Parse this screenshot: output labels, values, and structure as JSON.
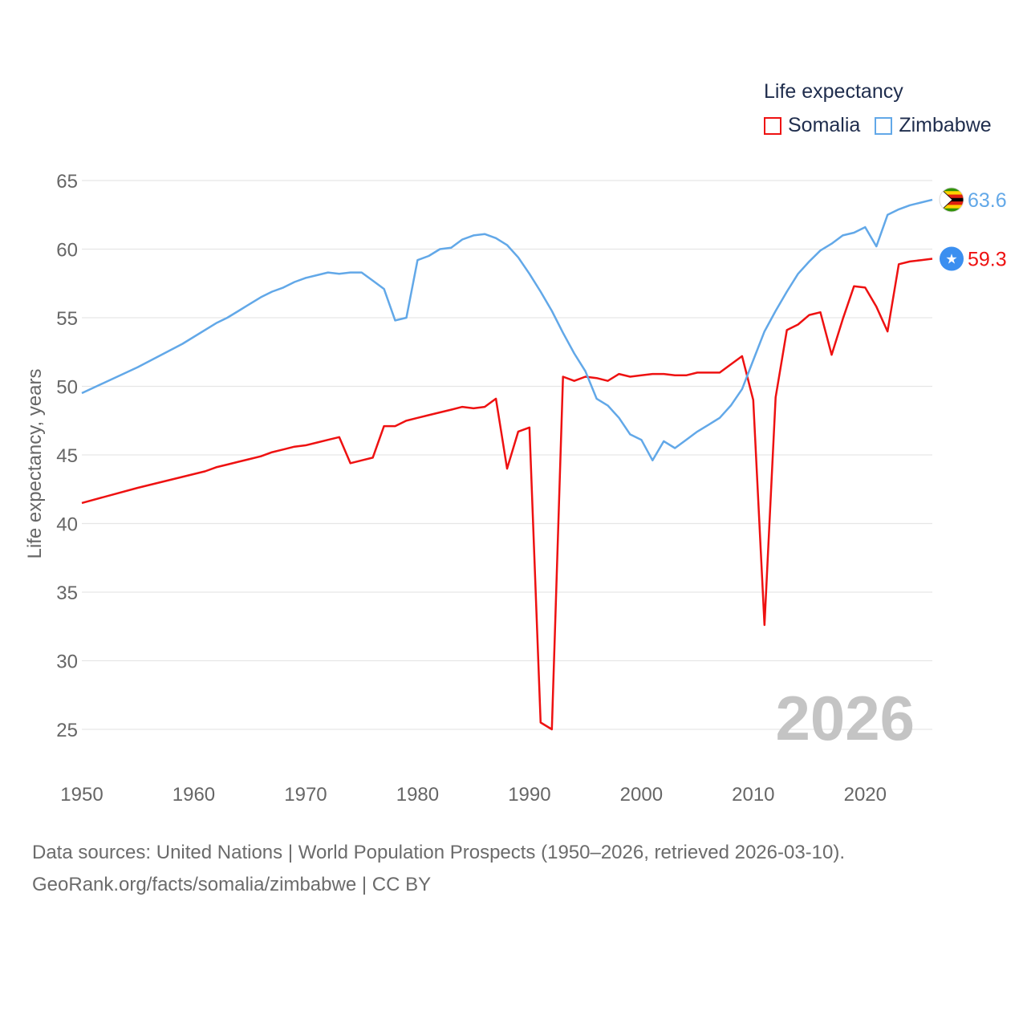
{
  "legend": {
    "title": "Life expectancy",
    "items": [
      {
        "name": "Somalia",
        "color": "#ee1111"
      },
      {
        "name": "Zimbabwe",
        "color": "#62a8e8"
      }
    ]
  },
  "year_watermark": "2026",
  "footer": {
    "line1": "Data sources: United Nations | World Population Prospects (1950–2026, retrieved 2026-03-10).",
    "line2": "GeoRank.org/facts/somalia/zimbabwe | CC BY"
  },
  "chart_data": {
    "type": "line",
    "title": "Life expectancy",
    "xlabel": "",
    "ylabel": "Life expectancy, years",
    "xlim": [
      1950,
      2026
    ],
    "ylim": [
      22,
      65
    ],
    "x_ticks": [
      1950,
      1960,
      1970,
      1980,
      1990,
      2000,
      2010,
      2020
    ],
    "y_ticks": [
      25,
      30,
      35,
      40,
      45,
      50,
      55,
      60,
      65
    ],
    "grid": "horizontal",
    "legend_position": "top-right",
    "series": [
      {
        "name": "Somalia",
        "color": "#ee1111",
        "end_label": "59.3",
        "end_icon": "somalia-flag-icon",
        "points": [
          [
            1950,
            41.5
          ],
          [
            1955,
            42.6
          ],
          [
            1960,
            43.6
          ],
          [
            1961,
            43.8
          ],
          [
            1962,
            44.1
          ],
          [
            1963,
            44.3
          ],
          [
            1964,
            44.5
          ],
          [
            1965,
            44.7
          ],
          [
            1966,
            44.9
          ],
          [
            1967,
            45.2
          ],
          [
            1968,
            45.4
          ],
          [
            1969,
            45.6
          ],
          [
            1970,
            45.7
          ],
          [
            1971,
            45.9
          ],
          [
            1972,
            46.1
          ],
          [
            1973,
            46.3
          ],
          [
            1974,
            44.4
          ],
          [
            1975,
            44.6
          ],
          [
            1976,
            44.8
          ],
          [
            1977,
            47.1
          ],
          [
            1978,
            47.1
          ],
          [
            1979,
            47.5
          ],
          [
            1980,
            47.7
          ],
          [
            1981,
            47.9
          ],
          [
            1982,
            48.1
          ],
          [
            1983,
            48.3
          ],
          [
            1984,
            48.5
          ],
          [
            1985,
            48.4
          ],
          [
            1986,
            48.5
          ],
          [
            1987,
            49.1
          ],
          [
            1988,
            44.0
          ],
          [
            1989,
            46.7
          ],
          [
            1990,
            47.0
          ],
          [
            1991,
            25.5
          ],
          [
            1992,
            25.0
          ],
          [
            1993,
            50.7
          ],
          [
            1994,
            50.4
          ],
          [
            1995,
            50.7
          ],
          [
            1996,
            50.6
          ],
          [
            1997,
            50.4
          ],
          [
            1998,
            50.9
          ],
          [
            1999,
            50.7
          ],
          [
            2000,
            50.8
          ],
          [
            2001,
            50.9
          ],
          [
            2002,
            50.9
          ],
          [
            2003,
            50.8
          ],
          [
            2004,
            50.8
          ],
          [
            2005,
            51.0
          ],
          [
            2006,
            51.0
          ],
          [
            2007,
            51.0
          ],
          [
            2008,
            51.6
          ],
          [
            2009,
            52.2
          ],
          [
            2010,
            49.0
          ],
          [
            2011,
            32.6
          ],
          [
            2012,
            49.2
          ],
          [
            2013,
            54.1
          ],
          [
            2014,
            54.5
          ],
          [
            2015,
            55.2
          ],
          [
            2016,
            55.4
          ],
          [
            2017,
            52.3
          ],
          [
            2018,
            54.9
          ],
          [
            2019,
            57.3
          ],
          [
            2020,
            57.2
          ],
          [
            2021,
            55.8
          ],
          [
            2022,
            54.0
          ],
          [
            2023,
            58.9
          ],
          [
            2024,
            59.1
          ],
          [
            2025,
            59.2
          ],
          [
            2026,
            59.3
          ]
        ]
      },
      {
        "name": "Zimbabwe",
        "color": "#62a8e8",
        "end_label": "63.6",
        "end_icon": "zimbabwe-flag-icon",
        "points": [
          [
            1950,
            49.5
          ],
          [
            1955,
            51.4
          ],
          [
            1959,
            53.1
          ],
          [
            1962,
            54.6
          ],
          [
            1963,
            55.0
          ],
          [
            1964,
            55.5
          ],
          [
            1965,
            56.0
          ],
          [
            1966,
            56.5
          ],
          [
            1967,
            56.9
          ],
          [
            1968,
            57.2
          ],
          [
            1969,
            57.6
          ],
          [
            1970,
            57.9
          ],
          [
            1971,
            58.1
          ],
          [
            1972,
            58.3
          ],
          [
            1973,
            58.2
          ],
          [
            1974,
            58.3
          ],
          [
            1975,
            58.3
          ],
          [
            1976,
            57.7
          ],
          [
            1977,
            57.1
          ],
          [
            1978,
            54.8
          ],
          [
            1979,
            55.0
          ],
          [
            1980,
            59.2
          ],
          [
            1981,
            59.5
          ],
          [
            1982,
            60.0
          ],
          [
            1983,
            60.1
          ],
          [
            1984,
            60.7
          ],
          [
            1985,
            61.0
          ],
          [
            1986,
            61.1
          ],
          [
            1987,
            60.8
          ],
          [
            1988,
            60.3
          ],
          [
            1989,
            59.4
          ],
          [
            1990,
            58.2
          ],
          [
            1991,
            56.9
          ],
          [
            1992,
            55.5
          ],
          [
            1993,
            53.9
          ],
          [
            1994,
            52.4
          ],
          [
            1995,
            51.1
          ],
          [
            1996,
            49.1
          ],
          [
            1997,
            48.6
          ],
          [
            1998,
            47.7
          ],
          [
            1999,
            46.5
          ],
          [
            2000,
            46.1
          ],
          [
            2001,
            44.6
          ],
          [
            2002,
            46.0
          ],
          [
            2003,
            45.5
          ],
          [
            2004,
            46.1
          ],
          [
            2005,
            46.7
          ],
          [
            2006,
            47.2
          ],
          [
            2007,
            47.7
          ],
          [
            2008,
            48.6
          ],
          [
            2009,
            49.8
          ],
          [
            2010,
            51.9
          ],
          [
            2011,
            54.0
          ],
          [
            2012,
            55.5
          ],
          [
            2013,
            56.9
          ],
          [
            2014,
            58.2
          ],
          [
            2015,
            59.1
          ],
          [
            2016,
            59.9
          ],
          [
            2017,
            60.4
          ],
          [
            2018,
            61.0
          ],
          [
            2019,
            61.2
          ],
          [
            2020,
            61.6
          ],
          [
            2021,
            60.2
          ],
          [
            2022,
            62.5
          ],
          [
            2023,
            62.9
          ],
          [
            2024,
            63.2
          ],
          [
            2025,
            63.4
          ],
          [
            2026,
            63.6
          ]
        ]
      }
    ]
  }
}
